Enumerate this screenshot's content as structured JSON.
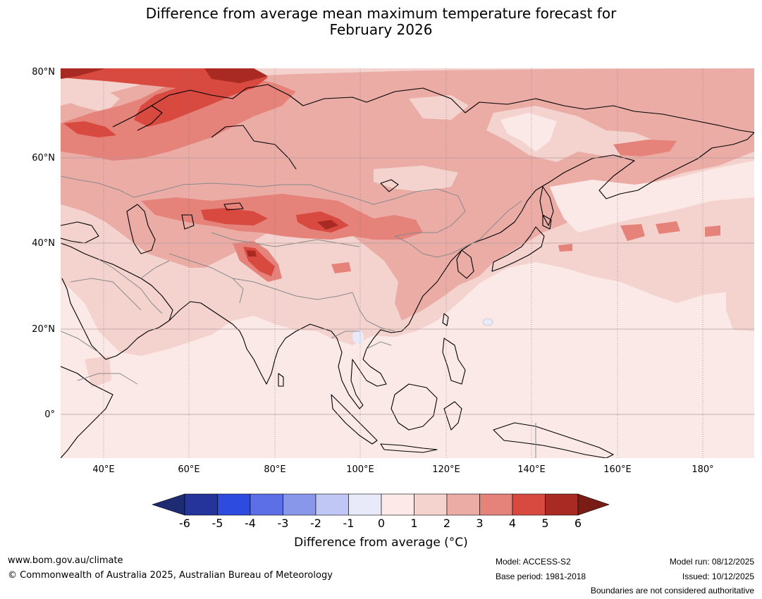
{
  "title": {
    "line1": "Difference from average mean maximum temperature forecast for",
    "line2": "February 2026"
  },
  "map": {
    "region": "Asia",
    "lat_labels": [
      "80°N",
      "60°N",
      "40°N",
      "20°N",
      "0°"
    ],
    "lon_labels": [
      "40°E",
      "60°E",
      "80°E",
      "100°E",
      "120°E",
      "140°E",
      "160°E",
      "180°"
    ],
    "colors": {
      "ocean_0_1": "#fbe9e7",
      "anom_1_2": "#f4d3cf",
      "anom_2_3": "#ebaca6",
      "anom_3_4": "#e5827a",
      "anom_4_5": "#d84a40",
      "anom_5_6": "#a92a22",
      "anom_gt6": "#7a1c16",
      "coast": "#000000",
      "borders": "#8a8a8a"
    }
  },
  "colorbar": {
    "ticks": [
      "-6",
      "-5",
      "-4",
      "-3",
      "-2",
      "-1",
      "0",
      "1",
      "2",
      "3",
      "4",
      "5",
      "6"
    ],
    "colors": [
      "#25349b",
      "#2e4be0",
      "#5c6fe6",
      "#8897ea",
      "#c0c7f4",
      "#e8eaf9",
      "#fde9e7",
      "#f4d3cf",
      "#ebaca6",
      "#e5827a",
      "#d84a40",
      "#a92a22"
    ],
    "low_extend_color": "#1c2b72",
    "high_extend_color": "#7a1c16",
    "label": "Difference from average (°C)"
  },
  "footer": {
    "url": "www.bom.gov.au/climate",
    "copyright": "© Commonwealth of Australia 2025, Australian Bureau of Meteorology",
    "model": "Model: ACCESS-S2",
    "base_period": "Base period: 1981-2018",
    "model_run": "Model run: 08/12/2025",
    "issued": "Issued: 10/12/2025",
    "disclaimer": "Boundaries are not considered authoritative"
  }
}
